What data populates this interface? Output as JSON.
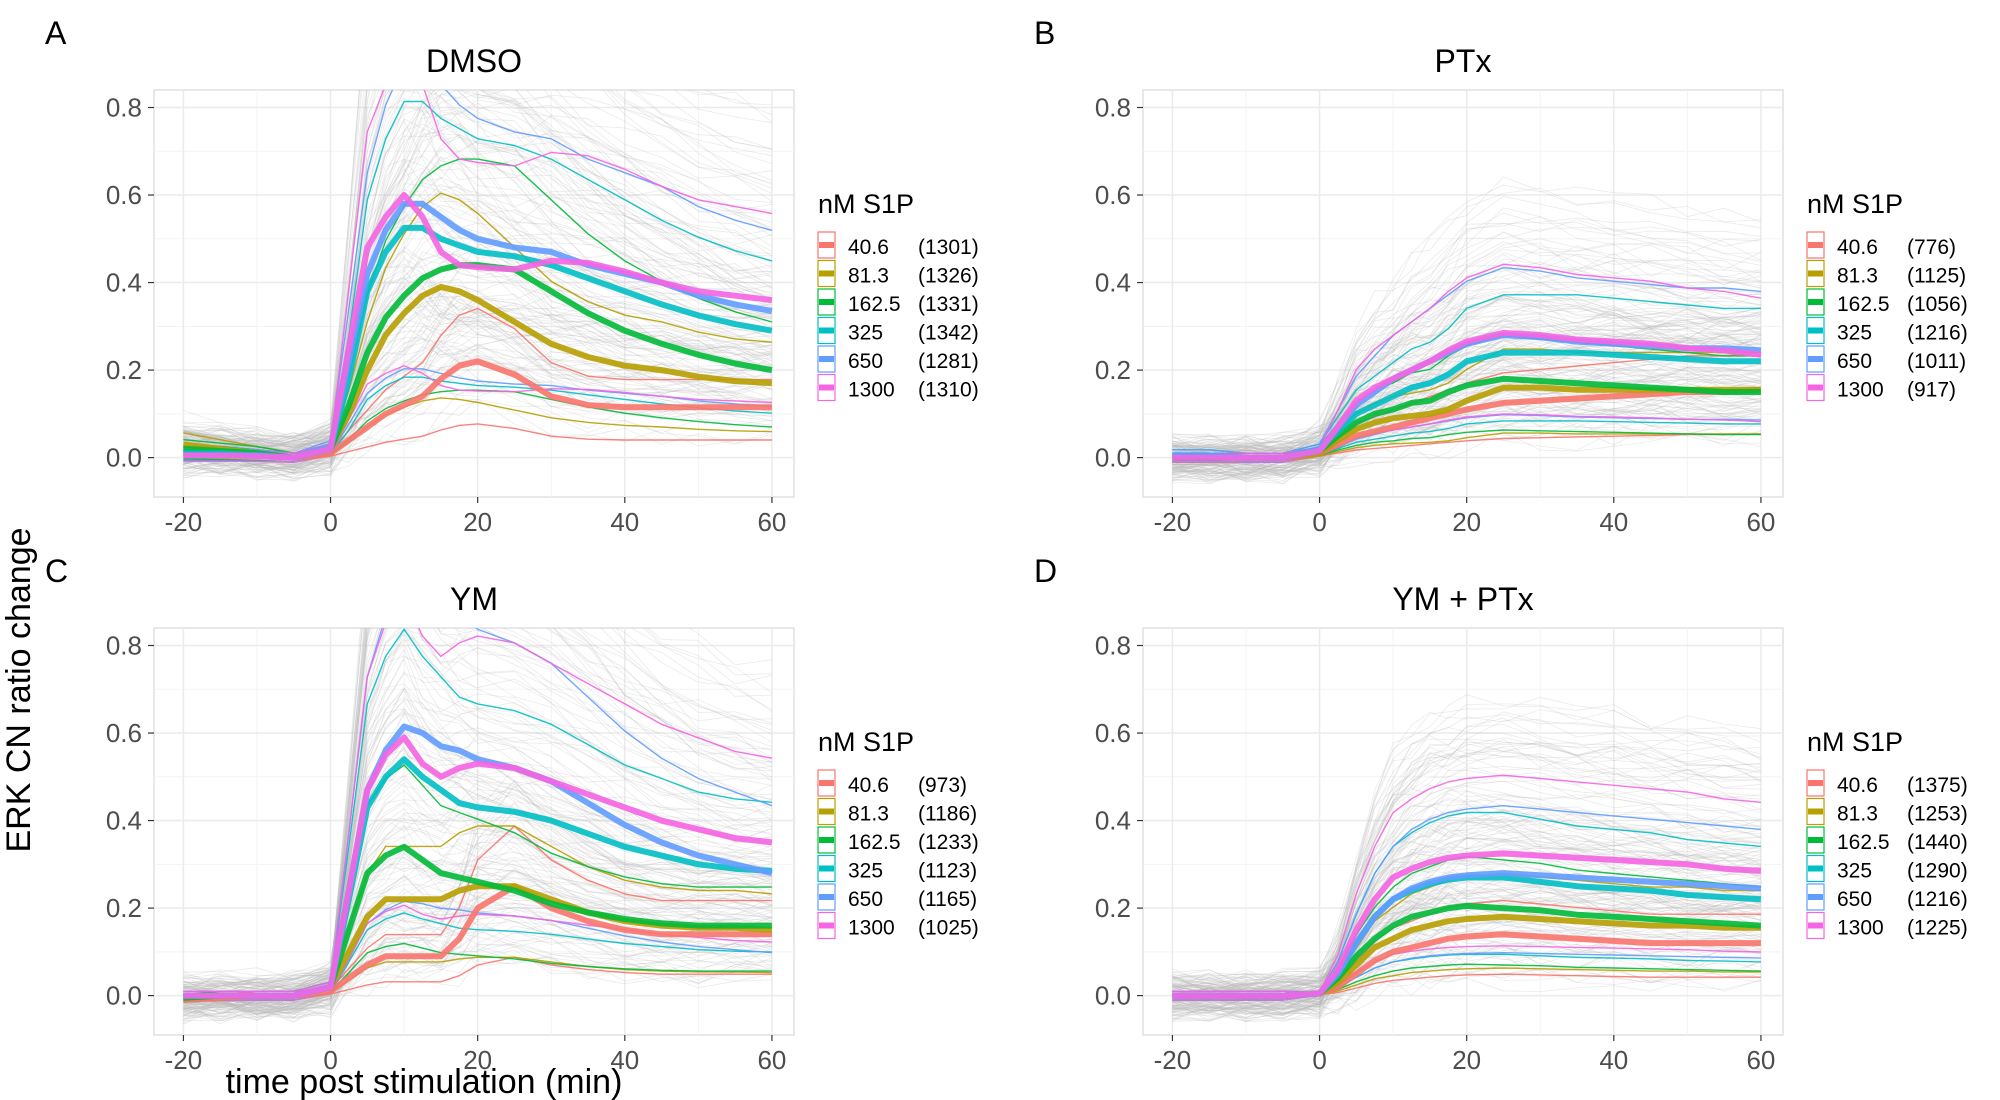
{
  "figure": {
    "ylabel": "ERK CN ratio change",
    "xlabel": "time post stimulation (min)"
  },
  "colors": {
    "40.6": "#F8766D",
    "81.3": "#B79F00",
    "162.5": "#00BA38",
    "325": "#00BFC4",
    "650": "#619CFF",
    "1300": "#F564E3",
    "background_traces": "#b8b8b8",
    "grid": "#ebebeb",
    "panel_border": "#d9d9d9"
  },
  "chart_data": [
    {
      "panel_letter": "A",
      "title": "DMSO",
      "type": "line",
      "xlim": [
        -24,
        63
      ],
      "ylim": [
        -0.09,
        0.84
      ],
      "xticks": [
        -20,
        0,
        20,
        40,
        60
      ],
      "yticks": [
        0.0,
        0.2,
        0.4,
        0.6,
        0.8
      ],
      "x": [
        -20,
        -15,
        -10,
        -5,
        0,
        2.5,
        5,
        7.5,
        10,
        12.5,
        15,
        17.5,
        20,
        25,
        30,
        35,
        40,
        45,
        50,
        55,
        60
      ],
      "legend_title": "nM S1P",
      "series": [
        {
          "name": "40.6",
          "n": "(1301)",
          "values": [
            0.01,
            0.01,
            0.005,
            0,
            0.01,
            0.04,
            0.07,
            0.1,
            0.12,
            0.14,
            0.18,
            0.21,
            0.22,
            0.19,
            0.14,
            0.12,
            0.115,
            0.115,
            0.115,
            0.115,
            0.115
          ]
        },
        {
          "name": "81.3",
          "n": "(1326)",
          "values": [
            0.03,
            0.02,
            0.01,
            0,
            0.02,
            0.1,
            0.2,
            0.28,
            0.33,
            0.37,
            0.39,
            0.38,
            0.36,
            0.31,
            0.26,
            0.23,
            0.21,
            0.2,
            0.185,
            0.175,
            0.17
          ]
        },
        {
          "name": "162.5",
          "n": "(1331)",
          "values": [
            0.02,
            0.015,
            0.01,
            0,
            0.02,
            0.12,
            0.24,
            0.32,
            0.37,
            0.41,
            0.43,
            0.44,
            0.44,
            0.43,
            0.38,
            0.33,
            0.29,
            0.26,
            0.235,
            0.215,
            0.2
          ]
        },
        {
          "name": "325",
          "n": "(1342)",
          "values": [
            0.01,
            0.01,
            0.005,
            0,
            0.02,
            0.18,
            0.38,
            0.47,
            0.525,
            0.525,
            0.5,
            0.485,
            0.47,
            0.46,
            0.44,
            0.41,
            0.38,
            0.35,
            0.325,
            0.305,
            0.29
          ]
        },
        {
          "name": "650",
          "n": "(1281)",
          "values": [
            0.005,
            0.005,
            0.005,
            0,
            0.025,
            0.22,
            0.42,
            0.52,
            0.58,
            0.58,
            0.55,
            0.52,
            0.5,
            0.48,
            0.47,
            0.44,
            0.42,
            0.4,
            0.37,
            0.35,
            0.335
          ]
        },
        {
          "name": "1300",
          "n": "(1310)",
          "values": [
            0.005,
            0.005,
            0.003,
            0,
            0.02,
            0.25,
            0.48,
            0.55,
            0.6,
            0.55,
            0.47,
            0.44,
            0.435,
            0.43,
            0.45,
            0.445,
            0.425,
            0.4,
            0.38,
            0.37,
            0.36
          ]
        }
      ]
    },
    {
      "panel_letter": "B",
      "title": "PTx",
      "type": "line",
      "xlim": [
        -24,
        63
      ],
      "ylim": [
        -0.09,
        0.84
      ],
      "xticks": [
        -20,
        0,
        20,
        40,
        60
      ],
      "yticks": [
        0.0,
        0.2,
        0.4,
        0.6,
        0.8
      ],
      "x": [
        -20,
        -15,
        -10,
        -5,
        0,
        2.5,
        5,
        7.5,
        10,
        12.5,
        15,
        17.5,
        20,
        25,
        30,
        35,
        40,
        45,
        50,
        55,
        60
      ],
      "legend_title": "nM S1P",
      "series": [
        {
          "name": "40.6",
          "n": "(776)",
          "values": [
            0.0,
            0.0,
            0.0,
            0,
            0.01,
            0.03,
            0.05,
            0.06,
            0.07,
            0.08,
            0.09,
            0.1,
            0.11,
            0.125,
            0.13,
            0.135,
            0.14,
            0.145,
            0.15,
            0.15,
            0.155
          ]
        },
        {
          "name": "81.3",
          "n": "(1125)",
          "values": [
            0.0,
            0.0,
            0.0,
            0,
            0.01,
            0.04,
            0.065,
            0.08,
            0.09,
            0.095,
            0.1,
            0.11,
            0.13,
            0.16,
            0.16,
            0.155,
            0.155,
            0.155,
            0.155,
            0.155,
            0.155
          ]
        },
        {
          "name": "162.5",
          "n": "(1056)",
          "values": [
            0.0,
            0.0,
            0.0,
            0,
            0.015,
            0.05,
            0.08,
            0.1,
            0.11,
            0.125,
            0.13,
            0.15,
            0.165,
            0.18,
            0.175,
            0.17,
            0.165,
            0.16,
            0.155,
            0.15,
            0.15
          ]
        },
        {
          "name": "325",
          "n": "(1216)",
          "values": [
            0.005,
            0.005,
            0.0,
            0,
            0.02,
            0.06,
            0.1,
            0.12,
            0.14,
            0.16,
            0.17,
            0.19,
            0.22,
            0.24,
            0.24,
            0.24,
            0.235,
            0.23,
            0.225,
            0.22,
            0.22
          ]
        },
        {
          "name": "650",
          "n": "(1011)",
          "values": [
            0.005,
            0.005,
            0.0,
            0,
            0.02,
            0.07,
            0.12,
            0.15,
            0.18,
            0.2,
            0.22,
            0.24,
            0.26,
            0.28,
            0.275,
            0.265,
            0.26,
            0.255,
            0.25,
            0.25,
            0.245
          ]
        },
        {
          "name": "1300",
          "n": "(917)",
          "values": [
            0.0,
            0.0,
            0.0,
            0,
            0.015,
            0.07,
            0.13,
            0.16,
            0.18,
            0.2,
            0.22,
            0.245,
            0.265,
            0.285,
            0.28,
            0.27,
            0.265,
            0.26,
            0.25,
            0.245,
            0.235
          ]
        }
      ]
    },
    {
      "panel_letter": "C",
      "title": "YM",
      "type": "line",
      "xlim": [
        -24,
        63
      ],
      "ylim": [
        -0.09,
        0.84
      ],
      "xticks": [
        -20,
        0,
        20,
        40,
        60
      ],
      "yticks": [
        0.0,
        0.2,
        0.4,
        0.6,
        0.8
      ],
      "x": [
        -20,
        -15,
        -10,
        -5,
        0,
        2.5,
        5,
        7.5,
        10,
        12.5,
        15,
        17.5,
        20,
        25,
        30,
        35,
        40,
        45,
        50,
        55,
        60
      ],
      "legend_title": "nM S1P",
      "series": [
        {
          "name": "40.6",
          "n": "(973)",
          "values": [
            -0.01,
            -0.005,
            0.0,
            0,
            0.01,
            0.04,
            0.07,
            0.09,
            0.09,
            0.09,
            0.09,
            0.13,
            0.2,
            0.25,
            0.2,
            0.17,
            0.15,
            0.14,
            0.14,
            0.14,
            0.14
          ]
        },
        {
          "name": "81.3",
          "n": "(1186)",
          "values": [
            -0.005,
            0.0,
            0.0,
            0,
            0.02,
            0.1,
            0.18,
            0.22,
            0.22,
            0.22,
            0.22,
            0.24,
            0.25,
            0.25,
            0.22,
            0.19,
            0.17,
            0.16,
            0.155,
            0.155,
            0.15
          ]
        },
        {
          "name": "162.5",
          "n": "(1233)",
          "values": [
            -0.005,
            0.0,
            0.0,
            0,
            0.02,
            0.15,
            0.28,
            0.32,
            0.34,
            0.31,
            0.28,
            0.27,
            0.26,
            0.24,
            0.21,
            0.19,
            0.175,
            0.165,
            0.16,
            0.16,
            0.16
          ]
        },
        {
          "name": "325",
          "n": "(1123)",
          "values": [
            0.0,
            0.0,
            0.0,
            0,
            0.02,
            0.22,
            0.43,
            0.5,
            0.54,
            0.5,
            0.47,
            0.44,
            0.43,
            0.42,
            0.4,
            0.37,
            0.34,
            0.32,
            0.3,
            0.29,
            0.285
          ]
        },
        {
          "name": "650",
          "n": "(1165)",
          "values": [
            0.0,
            0.0,
            0.0,
            0,
            0.02,
            0.24,
            0.47,
            0.56,
            0.615,
            0.6,
            0.57,
            0.56,
            0.54,
            0.52,
            0.49,
            0.44,
            0.39,
            0.35,
            0.32,
            0.3,
            0.28
          ]
        },
        {
          "name": "1300",
          "n": "(1025)",
          "values": [
            0.0,
            0.0,
            0.0,
            0,
            0.02,
            0.24,
            0.47,
            0.55,
            0.59,
            0.53,
            0.5,
            0.52,
            0.53,
            0.52,
            0.49,
            0.46,
            0.43,
            0.4,
            0.38,
            0.36,
            0.35
          ]
        }
      ]
    },
    {
      "panel_letter": "D",
      "title": "YM + PTx",
      "type": "line",
      "xlim": [
        -24,
        63
      ],
      "ylim": [
        -0.09,
        0.84
      ],
      "xticks": [
        -20,
        0,
        20,
        40,
        60
      ],
      "yticks": [
        0.0,
        0.2,
        0.4,
        0.6,
        0.8
      ],
      "x": [
        -20,
        -15,
        -10,
        -5,
        0,
        2.5,
        5,
        7.5,
        10,
        12.5,
        15,
        17.5,
        20,
        25,
        30,
        35,
        40,
        45,
        50,
        55,
        60
      ],
      "legend_title": "nM S1P",
      "series": [
        {
          "name": "40.6",
          "n": "(1375)",
          "values": [
            0.0,
            0.0,
            0.0,
            0,
            0.005,
            0.02,
            0.05,
            0.08,
            0.1,
            0.11,
            0.12,
            0.13,
            0.135,
            0.14,
            0.135,
            0.13,
            0.125,
            0.12,
            0.12,
            0.12,
            0.12
          ]
        },
        {
          "name": "81.3",
          "n": "(1253)",
          "values": [
            0.0,
            0.0,
            0.0,
            0,
            0.005,
            0.03,
            0.07,
            0.11,
            0.13,
            0.15,
            0.16,
            0.17,
            0.175,
            0.18,
            0.175,
            0.17,
            0.165,
            0.16,
            0.16,
            0.155,
            0.155
          ]
        },
        {
          "name": "162.5",
          "n": "(1440)",
          "values": [
            0.0,
            0.0,
            0.0,
            0,
            0.005,
            0.04,
            0.09,
            0.13,
            0.16,
            0.18,
            0.19,
            0.2,
            0.205,
            0.2,
            0.195,
            0.185,
            0.18,
            0.175,
            0.17,
            0.165,
            0.16
          ]
        },
        {
          "name": "325",
          "n": "(1290)",
          "values": [
            0.0,
            0.0,
            0.0,
            0,
            0.005,
            0.05,
            0.12,
            0.18,
            0.22,
            0.24,
            0.255,
            0.265,
            0.27,
            0.27,
            0.26,
            0.25,
            0.245,
            0.24,
            0.23,
            0.225,
            0.22
          ]
        },
        {
          "name": "650",
          "n": "(1216)",
          "values": [
            0.0,
            0.0,
            0.0,
            0,
            0.005,
            0.05,
            0.12,
            0.18,
            0.22,
            0.245,
            0.26,
            0.27,
            0.275,
            0.28,
            0.275,
            0.27,
            0.265,
            0.26,
            0.255,
            0.25,
            0.245
          ]
        },
        {
          "name": "1300",
          "n": "(1225)",
          "values": [
            0.0,
            0.0,
            0.0,
            0,
            0.005,
            0.06,
            0.15,
            0.22,
            0.27,
            0.29,
            0.305,
            0.315,
            0.32,
            0.325,
            0.32,
            0.315,
            0.31,
            0.305,
            0.3,
            0.29,
            0.285
          ]
        }
      ]
    }
  ]
}
